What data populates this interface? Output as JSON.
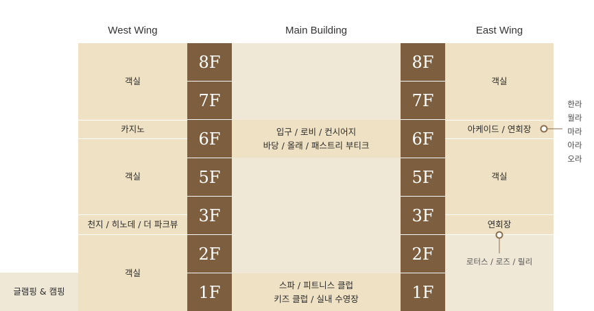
{
  "headers": {
    "west": "West Wing",
    "main": "Main Building",
    "east": "East Wing"
  },
  "floors": {
    "f8": "8F",
    "f7": "7F",
    "f6": "6F",
    "f5": "5F",
    "f3": "3F",
    "f2": "2F",
    "f1": "1F"
  },
  "west": {
    "rooms_top": "객실",
    "casino": "카지노",
    "rooms_mid": "객실",
    "lounge": "천지 / 히노데 / 더 파크뷰",
    "rooms_bottom": "객실"
  },
  "main": {
    "lobby_line1": "입구 / 로비 / 컨시어지",
    "lobby_line2": "바당 / 올래 / 패스트리 부티크",
    "spa_line1": "스파 / 피트니스 클럽",
    "spa_line2": "키즈 클럽 / 실내 수영장"
  },
  "east": {
    "rooms_top": "객실",
    "arcade": "아케이드 / 연회장",
    "rooms_mid": "객실",
    "banquet": "연회장",
    "banquet_rooms": "로터스 / 로즈 / 릴리",
    "halls": [
      "한라",
      "월라",
      "마라",
      "아라",
      "오라"
    ]
  },
  "outdoor": {
    "glamping": "글램핑 & 캠핑"
  },
  "colors": {
    "floor_bg": "#7d5f3f",
    "tan": "#efe1c3",
    "light": "#f0e8d7",
    "marker": "#8a6d4c"
  }
}
